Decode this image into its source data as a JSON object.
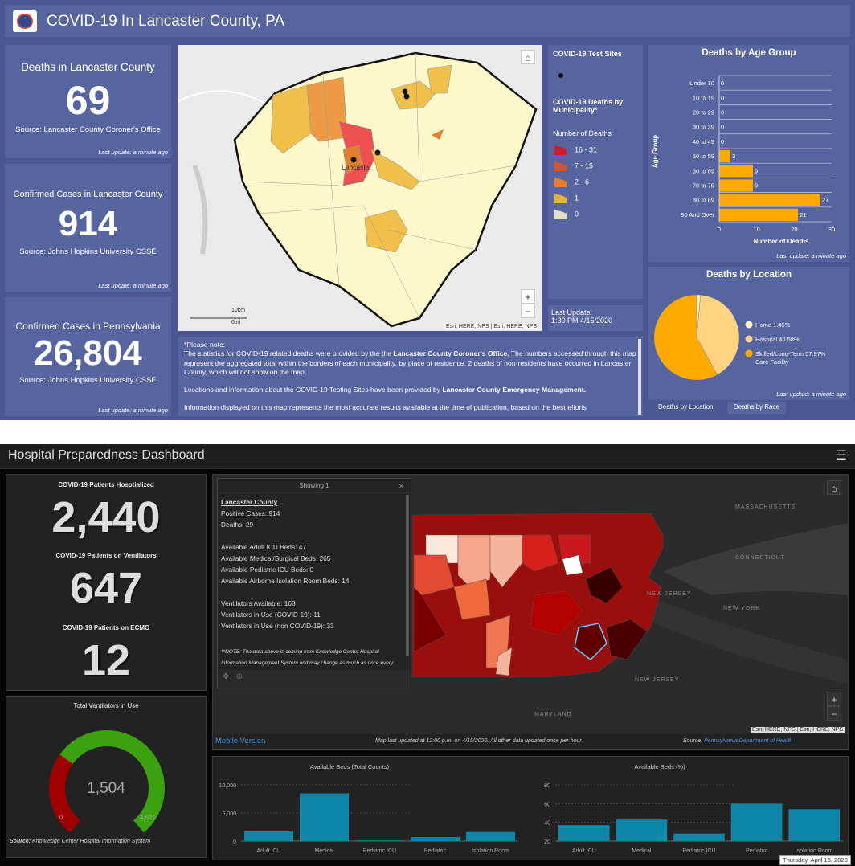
{
  "top": {
    "title": "COVID-19 In Lancaster County, PA",
    "cards": [
      {
        "title": "Deaths in Lancaster County",
        "value": "69",
        "source": "Source: Lancaster County Coroner's Office",
        "update": "Last update: a minute ago"
      },
      {
        "title": "Confirmed Cases in Lancaster County",
        "value": "914",
        "source": "Source: Johns Hopkins University CSSE",
        "update": "Last update: a minute ago"
      },
      {
        "title": "Confirmed Cases in Pennsylvania",
        "value": "26,804",
        "source": "Source: Johns Hopkins University CSSE",
        "update": "Last update: a minute ago"
      }
    ],
    "map": {
      "city_label": "Lancaster",
      "scale_km": "10km",
      "scale_mi": "6mi",
      "attribution": "Esri, HERE, NPS | Esri, HERE, NPS",
      "zoom_in": "+",
      "zoom_out": "−",
      "home_icon": "home-icon"
    },
    "legend": {
      "test_sites": "COVID-19 Test Sites",
      "deaths_title": "COVID-19 Deaths by Municipality*",
      "number_label": "Number of Deaths",
      "classes": [
        {
          "label": "16 - 31",
          "color": "#c8202f"
        },
        {
          "label": "7 - 15",
          "color": "#d9522b"
        },
        {
          "label": "2 - 6",
          "color": "#e07f2f"
        },
        {
          "label": "1",
          "color": "#e5b23a"
        },
        {
          "label": "0",
          "color": "#e2e0c8"
        }
      ]
    },
    "last_update": {
      "label": "Last Update:",
      "value": "1:30 PM 4/15/2020"
    },
    "note": {
      "p0": "*Please note:",
      "p1a": "The statistics for COVID-19 related deaths were provided by the the ",
      "p1b": "Lancaster County Coroner's Office.",
      "p1c": "  The numbers accessed through this map represent the aggregated total within the borders of each municipality, by place of residence.  2 deaths of non-residents have occurred in Lancaster County, which will not show on the map.",
      "p2a": "Locations and information about the COVID-19 Testing Sites have been provided by ",
      "p2b": "Lancaster County Emergency Management.",
      "p3": "Information displayed on this map represents the most accurate results available at the time of publication, based on the best efforts"
    },
    "age_update": "Last update: a minute ago",
    "loc_update": "Last update: a minute ago",
    "tabs": [
      "Deaths by Location",
      "Deaths by Race"
    ]
  },
  "bottom": {
    "title": "Hospital Preparedness Dashboard",
    "menu_icon": "hamburger-icon",
    "stats": [
      {
        "label": "COVID-19 Patients Hosptialized",
        "value": "2,440"
      },
      {
        "label": "COVID-19 Patients on Ventilators",
        "value": "647"
      },
      {
        "label": "COVID-19 Patients on ECMO",
        "value": "12"
      }
    ],
    "gauge": {
      "title": "Total Ventilators in Use",
      "value": 1504,
      "value_label": "1,504",
      "min_label": "0",
      "max_label": "4,921",
      "max": 4921,
      "colors": {
        "used": "#a10000",
        "remaining": "#3aa10f"
      },
      "source_label": "Source:",
      "source": " Knowledge Center Hospital Information System"
    },
    "popup": {
      "header": "Showing 1",
      "lines": [
        "Lancaster County",
        "Positive Cases: 914",
        "Deaths: 29",
        "",
        "Available Adult ICU Beds: 47",
        "Available Medical/Surgical Beds: 265",
        "Available Pediatric ICU Beds: 0",
        "Available Airborne Isolation Room Beds: 14",
        "",
        "Ventilators Available: 168",
        "Ventilators in Use (COVID-19): 11",
        "Ventilators in Use (non COVID-19): 33",
        "",
        ""
      ],
      "note1": "**NOTE: The data above is coming from Knowledge Center Hospital",
      "note2": "Information Management System and may change as much as once every"
    },
    "map_labels": {
      "massachusetts": "MASSACHUSETTS",
      "connecticut": "CONNECTICUT",
      "new_jersey": "NEW JERSEY",
      "new_york": "NEW YORK",
      "new_jersey2": "NEW JERSEY",
      "maryland": "MARYLAND",
      "attribution": "Esri, HERE, NPS | Esri, HERE, NPS"
    },
    "footer": {
      "mobile": "Mobile Version",
      "updated": "Map last updated at 12:00 p.m. on 4/15/2020. All other data updated once per hour.",
      "source_label": "Source: ",
      "source": "Pennsylvania Department of Health"
    },
    "date_tooltip": "Thursday, April 16, 2020"
  },
  "chart_data": [
    {
      "type": "bar",
      "orientation": "horizontal",
      "title": "Deaths by Age Group",
      "xlabel": "Number of Deaths",
      "ylabel": "Age Group",
      "categories": [
        "Under 10",
        "10 to 19",
        "20 to 29",
        "30 to 39",
        "40 to 49",
        "50 to 59",
        "60 to 69",
        "70 to 79",
        "80 to 89",
        "90 And Over"
      ],
      "values": [
        0,
        0,
        0,
        0,
        0,
        3,
        9,
        9,
        27,
        21
      ],
      "xlim": [
        0,
        30
      ],
      "xticks": [
        0,
        10,
        20,
        30
      ],
      "color": "#ffaa00",
      "grid": true
    },
    {
      "type": "pie",
      "title": "Deaths by Location",
      "slices": [
        {
          "label": "Home",
          "value": 1.45,
          "display": "Home  1.45%",
          "color": "#fff3b8"
        },
        {
          "label": "Hospital",
          "value": 40.58,
          "display": "Hospital  40.58%",
          "color": "#ffd37f"
        },
        {
          "label": "Skilled/Long-Term Care Facility",
          "value": 57.97,
          "display": "Skilled/Long-Term  57.97% Care Facility",
          "color": "#ffaa00"
        }
      ],
      "legend": "right"
    },
    {
      "type": "bar",
      "title": "Available Beds (Total Counts)",
      "categories": [
        "Adult ICU",
        "Medical",
        "Pediatric ICU",
        "Pediatric",
        "Isolation Room"
      ],
      "values": [
        1700,
        8500,
        100,
        700,
        1600
      ],
      "ylim": [
        0,
        10000
      ],
      "yticks": [
        "0",
        "5,000",
        "10,000"
      ],
      "ytick_values": [
        0,
        5000,
        10000
      ],
      "color": "#0e86a9",
      "grid": true
    },
    {
      "type": "bar",
      "title": "Available Beds (%)",
      "categories": [
        "Adult ICU",
        "Medical",
        "Pediatric ICU",
        "Pediatric",
        "Isolation Room"
      ],
      "values": [
        37,
        43,
        28,
        60,
        54
      ],
      "ylim": [
        20,
        80
      ],
      "yticks": [
        "20",
        "40",
        "60",
        "80"
      ],
      "ytick_values": [
        20,
        40,
        60,
        80
      ],
      "color": "#0e86a9",
      "grid": true
    }
  ]
}
